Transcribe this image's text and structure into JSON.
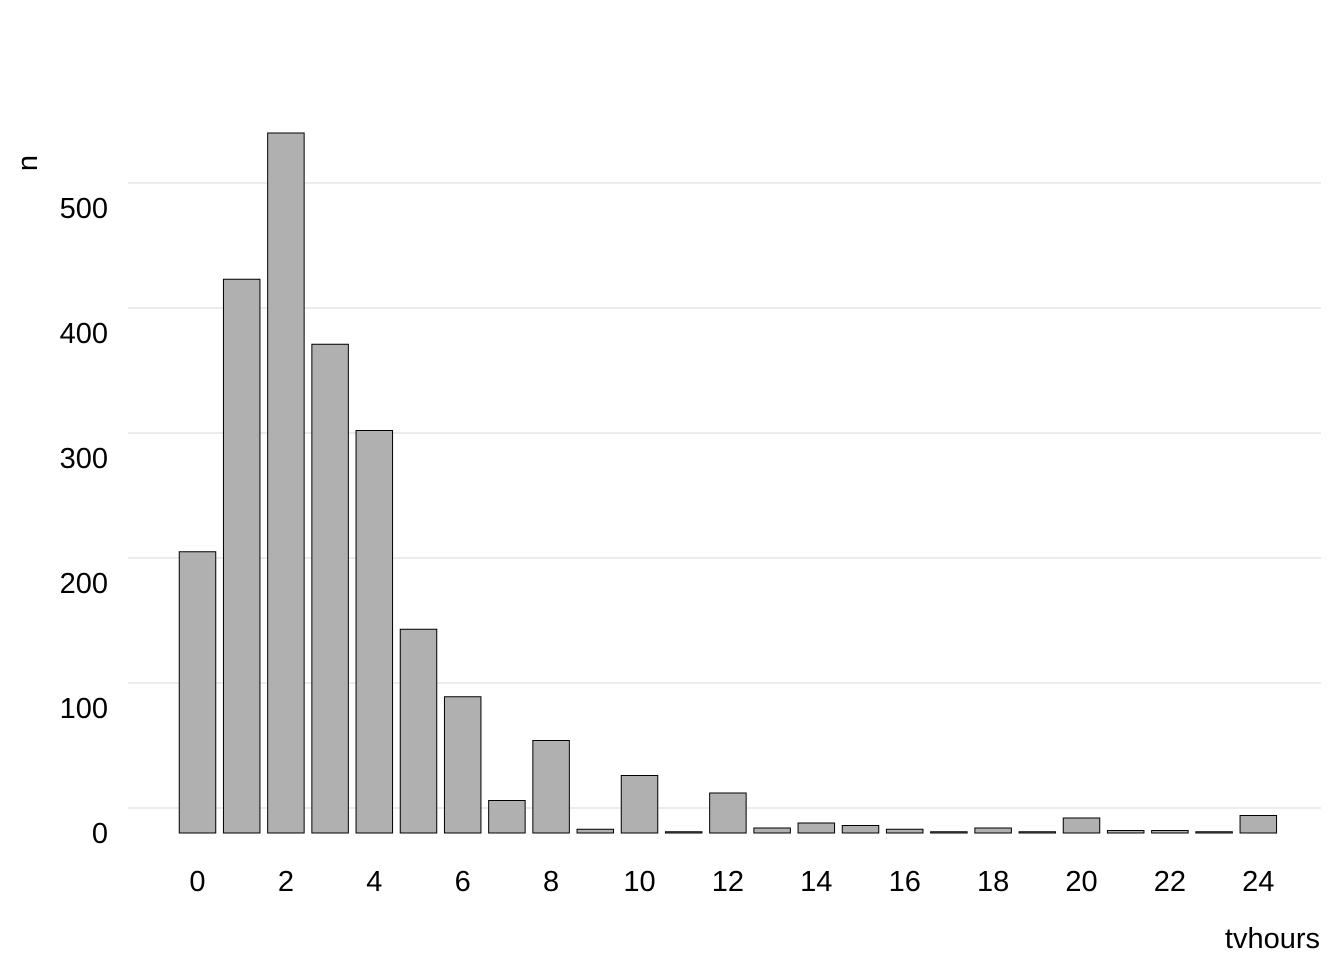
{
  "chart_data": {
    "type": "bar",
    "x": [
      0,
      1,
      2,
      3,
      4,
      5,
      6,
      7,
      8,
      9,
      10,
      11,
      12,
      13,
      14,
      15,
      16,
      17,
      18,
      19,
      20,
      21,
      22,
      23,
      24
    ],
    "values": [
      225,
      443,
      560,
      391,
      322,
      163,
      109,
      26,
      74,
      3,
      46,
      1,
      32,
      4,
      8,
      6,
      3,
      1,
      4,
      1,
      12,
      2,
      2,
      1,
      14
    ],
    "xticks": [
      "0",
      "2",
      "4",
      "6",
      "8",
      "10",
      "12",
      "14",
      "16",
      "18",
      "20",
      "22",
      "24"
    ],
    "xtick_values": [
      0,
      2,
      4,
      6,
      8,
      10,
      12,
      14,
      16,
      18,
      20,
      22,
      24
    ],
    "yticks": [
      "0",
      "100",
      "200",
      "300",
      "400",
      "500"
    ],
    "ytick_values": [
      0,
      100,
      200,
      300,
      400,
      500
    ],
    "gridline_values": [
      20,
      120,
      220,
      320,
      420,
      520
    ],
    "xlabel": "tvhours",
    "ylabel": "n",
    "ylim": [
      0,
      560
    ],
    "xlim": [
      -1,
      24.5
    ],
    "bar_fill": "#b0b0b0",
    "bar_stroke": "#000000",
    "grid": true,
    "grid_color": "#d9d9d9",
    "legend": "none"
  }
}
